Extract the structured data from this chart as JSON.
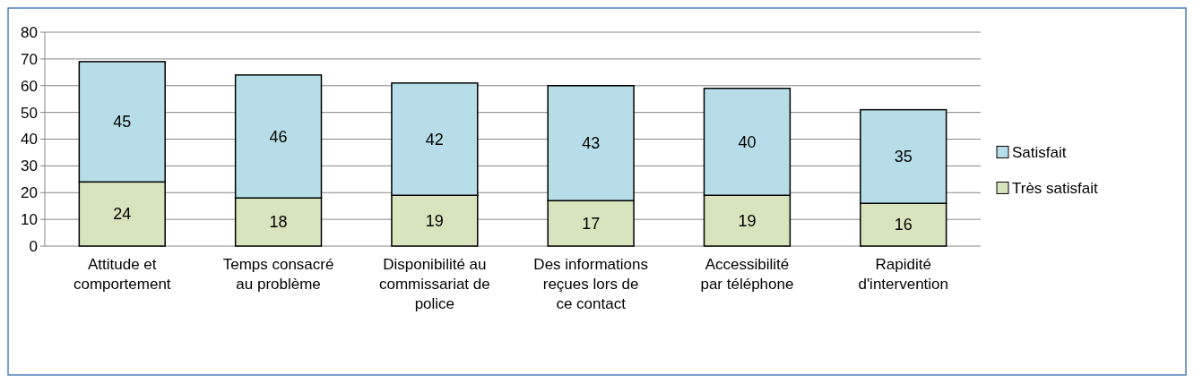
{
  "chart_data": {
    "type": "bar",
    "stacked": true,
    "categories": [
      "Attitude et comportement",
      "Temps consacré au problème",
      "Disponibilité au commissariat de police",
      "Des informations reçues lors de ce contact",
      "Accessibilité par téléphone",
      "Rapidité d'intervention"
    ],
    "series": [
      {
        "name": "Très satisfait",
        "color": "#d7e4bd",
        "values": [
          24,
          18,
          19,
          17,
          19,
          16
        ]
      },
      {
        "name": "Satisfait",
        "color": "#b7dee8",
        "values": [
          45,
          46,
          42,
          43,
          40,
          35
        ]
      }
    ],
    "ylim": [
      0,
      80
    ],
    "yticks": [
      0,
      10,
      20,
      30,
      40,
      50,
      60,
      70,
      80
    ],
    "grid": "y",
    "legend": "right",
    "data_labels": true
  }
}
